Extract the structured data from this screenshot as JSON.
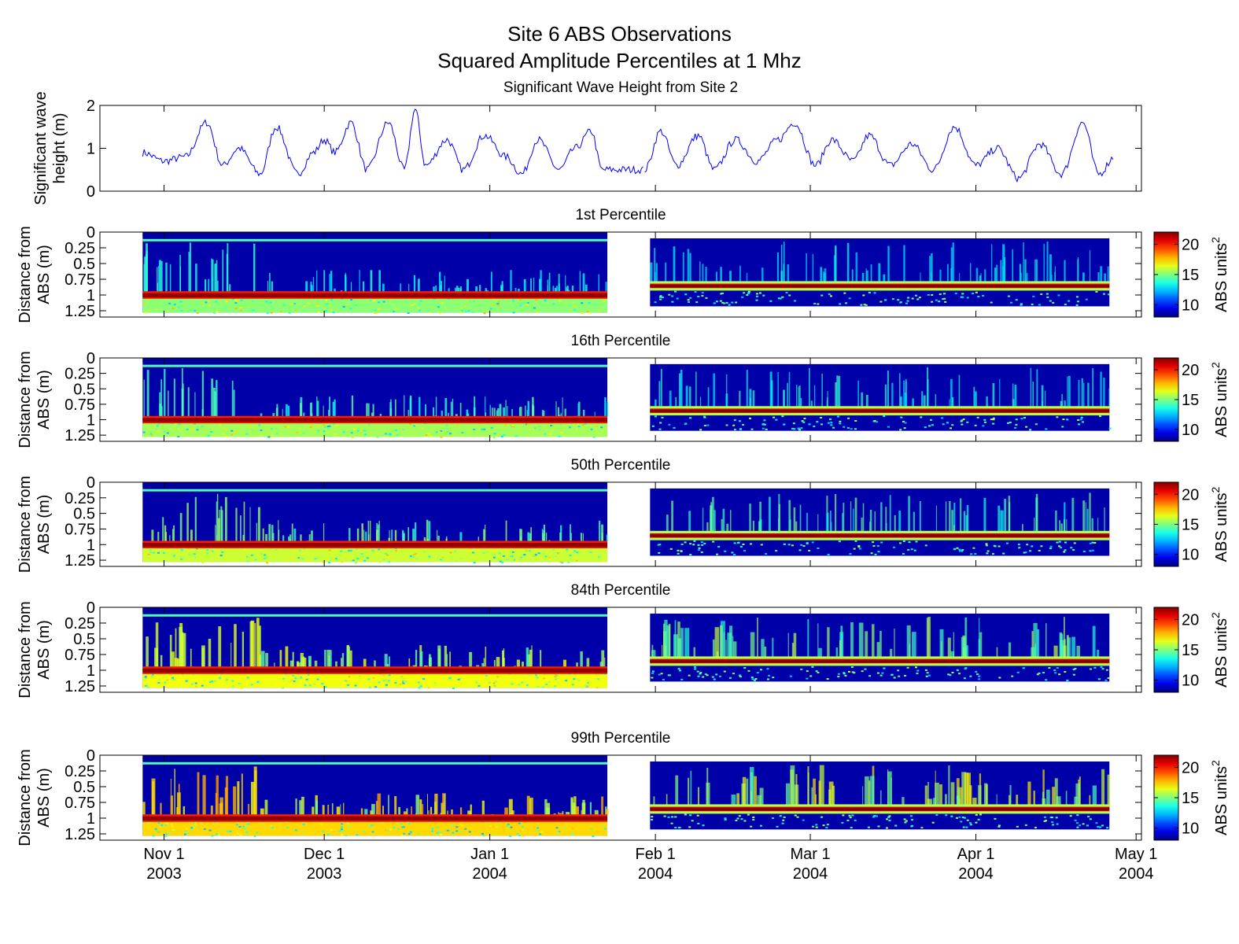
{
  "title": "Site 6 ABS Observations",
  "subtitle": "Squared Amplitude Percentiles at 1 Mhz",
  "colors": {
    "line": "#0000ff",
    "axis": "#000000",
    "jet_low": "#00008f",
    "jet_high": "#800000"
  },
  "x_ticks": [
    {
      "line1": "Nov 1",
      "line2": "2003"
    },
    {
      "line1": "Dec 1",
      "line2": "2003"
    },
    {
      "line1": "Jan 1",
      "line2": "2004"
    },
    {
      "line1": "Feb 1",
      "line2": "2004"
    },
    {
      "line1": "Mar 1",
      "line2": "2004"
    },
    {
      "line1": "Apr 1",
      "line2": "2004"
    },
    {
      "line1": "May 1",
      "line2": "2004"
    }
  ],
  "colorbar": {
    "label": "ABS units",
    "label_sup": "2",
    "ticks": [
      "10",
      "15",
      "20"
    ],
    "range": [
      8,
      22
    ]
  },
  "chart_data": [
    {
      "type": "line",
      "title": "Significant Wave Height from Site 2",
      "ylabel": [
        "Significant wave",
        "height (m)"
      ],
      "ylim": [
        0,
        2
      ],
      "yticks": [
        "0",
        "1",
        "2"
      ],
      "x_range": [
        "2003-10-20",
        "2004-05-02"
      ],
      "data_gap": [
        "2004-01-24",
        "2004-01-30"
      ],
      "series": [
        {
          "name": "Significant wave height",
          "x": [
            "2003-10-28",
            "2003-11-01",
            "2003-11-05",
            "2003-11-09",
            "2003-11-12",
            "2003-11-15",
            "2003-11-19",
            "2003-11-22",
            "2003-11-26",
            "2003-11-29",
            "2003-12-01",
            "2003-12-03",
            "2003-12-06",
            "2003-12-09",
            "2003-12-13",
            "2003-12-16",
            "2003-12-18",
            "2003-12-20",
            "2003-12-24",
            "2003-12-27",
            "2003-12-31",
            "2004-01-04",
            "2004-01-07",
            "2004-01-10",
            "2004-01-14",
            "2004-01-17",
            "2004-01-20",
            "2004-01-22",
            "2004-01-30",
            "2004-02-02",
            "2004-02-05",
            "2004-02-09",
            "2004-02-12",
            "2004-02-16",
            "2004-02-20",
            "2004-02-24",
            "2004-02-27",
            "2004-03-02",
            "2004-03-05",
            "2004-03-09",
            "2004-03-12",
            "2004-03-16",
            "2004-03-20",
            "2004-03-24",
            "2004-03-28",
            "2004-04-01",
            "2004-04-05",
            "2004-04-09",
            "2004-04-13",
            "2004-04-17",
            "2004-04-21",
            "2004-04-24",
            "2004-04-27"
          ],
          "values": [
            0.9,
            0.7,
            0.8,
            1.6,
            0.6,
            1.0,
            0.4,
            1.5,
            0.4,
            0.9,
            1.2,
            0.9,
            1.6,
            0.5,
            1.6,
            0.5,
            1.9,
            0.6,
            1.2,
            0.5,
            1.3,
            0.8,
            0.4,
            1.2,
            0.5,
            1.0,
            1.4,
            0.5,
            0.5,
            1.4,
            0.6,
            1.3,
            0.5,
            1.2,
            0.7,
            1.2,
            1.6,
            0.6,
            1.2,
            0.7,
            1.3,
            0.6,
            1.1,
            0.5,
            1.5,
            0.6,
            1.0,
            0.3,
            1.1,
            0.4,
            1.6,
            0.4,
            0.8
          ]
        }
      ]
    },
    {
      "type": "heatmap",
      "title": "1st Percentile",
      "ylabel": [
        "Distance from",
        "ABS (m)"
      ],
      "ylim": [
        1.35,
        0
      ],
      "yticks": [
        "0",
        "0.25",
        "0.5",
        "0.75",
        "1",
        "1.25"
      ],
      "color_range": [
        8,
        22
      ]
    },
    {
      "type": "heatmap",
      "title": "16th Percentile",
      "ylabel": [
        "Distance from",
        "ABS (m)"
      ],
      "ylim": [
        1.35,
        0
      ],
      "yticks": [
        "0",
        "0.25",
        "0.5",
        "0.75",
        "1",
        "1.25"
      ],
      "color_range": [
        8,
        22
      ]
    },
    {
      "type": "heatmap",
      "title": "50th Percentile",
      "ylabel": [
        "Distance from",
        "ABS (m)"
      ],
      "ylim": [
        1.35,
        0
      ],
      "yticks": [
        "0",
        "0.25",
        "0.5",
        "0.75",
        "1",
        "1.25"
      ],
      "color_range": [
        8,
        22
      ]
    },
    {
      "type": "heatmap",
      "title": "84th Percentile",
      "ylabel": [
        "Distance from",
        "ABS (m)"
      ],
      "ylim": [
        1.35,
        0
      ],
      "yticks": [
        "0",
        "0.25",
        "0.5",
        "0.75",
        "1",
        "1.25"
      ],
      "color_range": [
        8,
        22
      ]
    },
    {
      "type": "heatmap",
      "title": "99th Percentile",
      "ylabel": [
        "Distance from",
        "ABS (m)"
      ],
      "ylim": [
        1.35,
        0
      ],
      "yticks": [
        "0",
        "0.25",
        "0.5",
        "0.75",
        "1",
        "1.25"
      ],
      "color_range": [
        8,
        22
      ]
    }
  ]
}
